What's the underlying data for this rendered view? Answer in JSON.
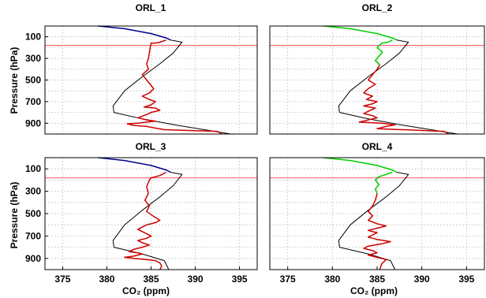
{
  "chart_data": [
    {
      "type": "line",
      "title": "ORL_1",
      "xlabel": "",
      "ylabel": "Pressure (hPa)",
      "xlim": [
        373,
        397
      ],
      "ylim": [
        0,
        1000
      ],
      "y_inverted": true,
      "xticks": [],
      "yticks": [
        100,
        300,
        500,
        700,
        900
      ],
      "grid": true,
      "hline": 180,
      "series": [
        {
          "color": "#00008b",
          "x": [
            379.0,
            382.0,
            385.0,
            386.7,
            387.2
          ],
          "y": [
            0,
            25,
            70,
            110,
            130
          ]
        },
        {
          "color": "#000000",
          "x": [
            387.2,
            388.5,
            387.5,
            386.0,
            384.0,
            382.0,
            380.7,
            380.8,
            384.0,
            388.0,
            391.0,
            394.0
          ],
          "y": [
            130,
            150,
            250,
            350,
            470,
            600,
            740,
            800,
            860,
            920,
            960,
            1000
          ]
        },
        {
          "color": "#cc0000",
          "x": [
            386.7,
            386.0,
            385.8,
            385.0,
            384.9,
            384.7,
            384.5,
            384.7,
            384.0,
            384.5,
            385.0,
            385.3,
            384.8,
            384.0,
            384.8,
            385.5,
            385.0,
            384.2,
            385.5,
            386.0,
            385.0,
            384.5,
            383.5,
            384.5,
            385.5,
            384.5,
            383.5,
            382.3,
            383.0,
            384.5,
            385.5,
            386.5,
            392.5,
            393.0
          ],
          "y": [
            130,
            150,
            155,
            160,
            200,
            300,
            350,
            400,
            450,
            500,
            550,
            580,
            620,
            650,
            680,
            700,
            730,
            750,
            760,
            780,
            800,
            820,
            850,
            870,
            880,
            890,
            900,
            905,
            920,
            930,
            945,
            960,
            975,
            1000
          ]
        }
      ]
    },
    {
      "type": "line",
      "title": "ORL_2",
      "xlabel": "",
      "ylabel": "",
      "xlim": [
        373,
        397
      ],
      "ylim": [
        0,
        1000
      ],
      "y_inverted": true,
      "xticks": [],
      "yticks": [],
      "grid": true,
      "hline": 180,
      "series": [
        {
          "color": "#00cc00",
          "x": [
            379.0,
            382.0,
            385.0,
            386.7,
            387.2
          ],
          "y": [
            0,
            25,
            70,
            110,
            130
          ]
        },
        {
          "color": "#000000",
          "x": [
            387.2,
            388.5,
            387.5,
            386.0,
            384.0,
            382.0,
            380.7,
            380.8,
            384.0,
            388.0,
            391.0,
            394.0
          ],
          "y": [
            130,
            150,
            250,
            350,
            470,
            600,
            740,
            800,
            860,
            920,
            960,
            1000
          ]
        },
        {
          "color": "#00cc00",
          "x": [
            386.7,
            386.2,
            385.5,
            385.0,
            385.6,
            385.2,
            384.8,
            385.3
          ],
          "y": [
            130,
            150,
            160,
            200,
            240,
            280,
            320,
            360
          ]
        },
        {
          "color": "#cc0000",
          "x": [
            385.3,
            385.0,
            384.5,
            384.0,
            384.8,
            384.0,
            383.5,
            384.5,
            383.8,
            385.0,
            384.5,
            383.5,
            384.8,
            384.0,
            383.5,
            384.5,
            385.0,
            384.0,
            383.0,
            385.5,
            387.0,
            386.0,
            385.0,
            392.5,
            393.0
          ],
          "y": [
            360,
            400,
            450,
            500,
            540,
            580,
            620,
            650,
            680,
            700,
            720,
            740,
            760,
            790,
            810,
            830,
            850,
            870,
            890,
            900,
            915,
            930,
            950,
            975,
            1000
          ]
        }
      ]
    },
    {
      "type": "line",
      "title": "ORL_3",
      "xlabel": "CO₂ (ppm)",
      "ylabel": "Pressure (hPa)",
      "xlim": [
        373,
        397
      ],
      "ylim": [
        0,
        1000
      ],
      "y_inverted": true,
      "xticks": [
        375,
        380,
        385,
        390,
        395
      ],
      "yticks": [
        100,
        300,
        500,
        700,
        900
      ],
      "grid": true,
      "hline": 180,
      "series": [
        {
          "color": "#00008b",
          "x": [
            379.0,
            382.0,
            385.0,
            386.7,
            387.2
          ],
          "y": [
            0,
            25,
            70,
            110,
            130
          ]
        },
        {
          "color": "#000000",
          "x": [
            387.2,
            388.5,
            387.5,
            386.0,
            384.0,
            382.0,
            380.7,
            380.8,
            384.0,
            386.5,
            387.0
          ],
          "y": [
            130,
            150,
            250,
            350,
            470,
            600,
            740,
            800,
            860,
            920,
            1000
          ]
        },
        {
          "color": "#cc0000",
          "x": [
            386.7,
            386.0,
            385.0,
            384.8,
            384.5,
            384.7,
            384.3,
            384.8,
            384.5,
            385.2,
            386.0,
            385.5,
            384.5,
            383.5,
            384.5,
            385.0,
            384.5,
            383.5,
            384.0,
            384.8,
            384.0,
            383.0,
            382.5,
            383.5,
            384.0,
            383.5,
            383.0,
            382.0,
            383.0,
            384.5,
            385.5,
            386.0,
            386.2,
            386.0
          ],
          "y": [
            130,
            160,
            180,
            200,
            260,
            320,
            380,
            430,
            480,
            520,
            560,
            580,
            600,
            640,
            680,
            700,
            720,
            740,
            760,
            780,
            800,
            820,
            840,
            850,
            860,
            870,
            880,
            890,
            900,
            910,
            920,
            940,
            970,
            1000
          ]
        }
      ]
    },
    {
      "type": "line",
      "title": "ORL_4",
      "xlabel": "CO₂ (ppm)",
      "ylabel": "",
      "xlim": [
        373,
        397
      ],
      "ylim": [
        0,
        1000
      ],
      "y_inverted": true,
      "xticks": [
        375,
        380,
        385,
        390,
        395
      ],
      "yticks": [],
      "grid": true,
      "hline": 180,
      "series": [
        {
          "color": "#00cc00",
          "x": [
            379.0,
            382.0,
            385.0,
            386.7,
            387.2
          ],
          "y": [
            0,
            25,
            70,
            110,
            130
          ]
        },
        {
          "color": "#000000",
          "x": [
            387.2,
            388.5,
            387.5,
            386.0,
            384.0,
            382.0,
            380.7,
            380.8,
            384.0,
            386.5,
            387.0
          ],
          "y": [
            130,
            150,
            250,
            350,
            470,
            600,
            740,
            800,
            860,
            920,
            1000
          ]
        },
        {
          "color": "#00cc00",
          "x": [
            386.7,
            386.0,
            385.2,
            384.8,
            385.2,
            384.8,
            385.0
          ],
          "y": [
            130,
            150,
            170,
            200,
            240,
            280,
            320
          ]
        },
        {
          "color": "#cc0000",
          "x": [
            385.0,
            384.8,
            384.5,
            384.0,
            384.5,
            384.0,
            385.0,
            386.0,
            385.0,
            384.0,
            385.0,
            384.5,
            384.0,
            385.0,
            386.5,
            385.5,
            384.0,
            383.5,
            384.5,
            385.0,
            384.0,
            385.0,
            386.0,
            385.5,
            385.3
          ],
          "y": [
            320,
            380,
            430,
            480,
            520,
            560,
            590,
            610,
            630,
            650,
            670,
            690,
            710,
            730,
            750,
            770,
            790,
            810,
            830,
            850,
            870,
            890,
            910,
            950,
            1000
          ]
        }
      ]
    }
  ]
}
